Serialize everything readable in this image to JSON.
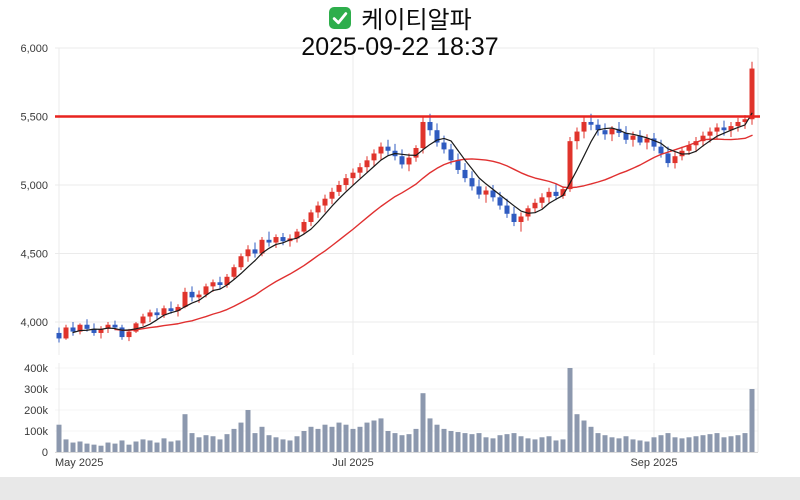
{
  "header": {
    "check_icon": "green-checked-checkbox",
    "title": "케이티알파",
    "timestamp": "2025-09-22 18:37"
  },
  "colors": {
    "up": "#e0342c",
    "down": "#2f5bc0",
    "ma_fast": "#1a1a1a",
    "ma_slow": "#e03030",
    "resistance": "#e8231f",
    "volume": "#8c98ae",
    "grid": "#ebebeb",
    "grid_faint": "#f4f4f4",
    "axis_line": "#d8d8d8",
    "footer_band": "#e8e8e8",
    "check_green": "#2eae4c"
  },
  "chart_data": {
    "type": "candlestick",
    "title": "케이티알파",
    "timestamp": "2025-09-22 18:37",
    "candle_fields": [
      "open",
      "high",
      "low",
      "close",
      "volume_k"
    ],
    "y_axis": {
      "ticks": [
        6000,
        5500,
        5000,
        4500,
        4000
      ],
      "labels": [
        "6,000",
        "5,500",
        "5,000",
        "4,500",
        "4,000"
      ],
      "range": [
        3760,
        6050
      ]
    },
    "volume_axis": {
      "ticks": [
        400,
        300,
        200,
        100,
        0
      ],
      "labels": [
        "400k",
        "300k",
        "200k",
        "100k",
        "0"
      ],
      "unit": "thousand-shares",
      "range": [
        0,
        450
      ]
    },
    "x_axis": {
      "labels": [
        {
          "text": "May 2025",
          "index": 0
        },
        {
          "text": "Jul 2025",
          "index": 42
        },
        {
          "text": "Sep 2025",
          "index": 85
        }
      ]
    },
    "resistance_level": 5500,
    "moving_averages": {
      "fast_period": 5,
      "slow_period": 20
    },
    "candles": [
      [
        3920,
        3960,
        3850,
        3880,
        130
      ],
      [
        3880,
        3980,
        3870,
        3960,
        60
      ],
      [
        3960,
        4000,
        3900,
        3930,
        45
      ],
      [
        3930,
        3990,
        3910,
        3980,
        50
      ],
      [
        3980,
        4020,
        3930,
        3950,
        40
      ],
      [
        3950,
        3990,
        3900,
        3920,
        35
      ],
      [
        3920,
        3970,
        3880,
        3950,
        30
      ],
      [
        3950,
        4000,
        3920,
        3980,
        45
      ],
      [
        3980,
        4010,
        3940,
        3960,
        40
      ],
      [
        3960,
        3980,
        3870,
        3890,
        55
      ],
      [
        3890,
        3950,
        3860,
        3930,
        35
      ],
      [
        3930,
        4000,
        3920,
        3990,
        50
      ],
      [
        3990,
        4060,
        3970,
        4040,
        60
      ],
      [
        4040,
        4090,
        4000,
        4070,
        55
      ],
      [
        4070,
        4100,
        4020,
        4050,
        45
      ],
      [
        4050,
        4120,
        4030,
        4100,
        65
      ],
      [
        4100,
        4150,
        4060,
        4080,
        50
      ],
      [
        4080,
        4130,
        4040,
        4110,
        55
      ],
      [
        4110,
        4250,
        4100,
        4220,
        180
      ],
      [
        4220,
        4260,
        4150,
        4180,
        90
      ],
      [
        4180,
        4230,
        4140,
        4200,
        70
      ],
      [
        4200,
        4280,
        4180,
        4260,
        80
      ],
      [
        4260,
        4310,
        4220,
        4290,
        75
      ],
      [
        4290,
        4330,
        4240,
        4270,
        60
      ],
      [
        4270,
        4350,
        4250,
        4330,
        85
      ],
      [
        4330,
        4420,
        4310,
        4400,
        110
      ],
      [
        4400,
        4500,
        4380,
        4480,
        140
      ],
      [
        4480,
        4560,
        4440,
        4530,
        200
      ],
      [
        4530,
        4580,
        4470,
        4500,
        90
      ],
      [
        4500,
        4620,
        4480,
        4600,
        120
      ],
      [
        4600,
        4660,
        4550,
        4580,
        80
      ],
      [
        4580,
        4640,
        4540,
        4620,
        70
      ],
      [
        4620,
        4650,
        4560,
        4590,
        60
      ],
      [
        4590,
        4640,
        4550,
        4610,
        55
      ],
      [
        4610,
        4680,
        4580,
        4660,
        75
      ],
      [
        4660,
        4750,
        4640,
        4730,
        100
      ],
      [
        4730,
        4820,
        4700,
        4800,
        120
      ],
      [
        4800,
        4880,
        4760,
        4850,
        110
      ],
      [
        4850,
        4930,
        4800,
        4900,
        130
      ],
      [
        4900,
        4980,
        4860,
        4950,
        120
      ],
      [
        4950,
        5030,
        4920,
        5000,
        140
      ],
      [
        5000,
        5080,
        4960,
        5050,
        130
      ],
      [
        5050,
        5120,
        5000,
        5090,
        110
      ],
      [
        5090,
        5160,
        5050,
        5130,
        120
      ],
      [
        5130,
        5210,
        5090,
        5180,
        140
      ],
      [
        5180,
        5260,
        5140,
        5230,
        150
      ],
      [
        5230,
        5310,
        5180,
        5280,
        160
      ],
      [
        5280,
        5330,
        5220,
        5250,
        100
      ],
      [
        5250,
        5300,
        5180,
        5210,
        90
      ],
      [
        5210,
        5260,
        5120,
        5150,
        80
      ],
      [
        5150,
        5230,
        5100,
        5200,
        85
      ],
      [
        5200,
        5290,
        5170,
        5270,
        110
      ],
      [
        5270,
        5500,
        5230,
        5460,
        280
      ],
      [
        5460,
        5520,
        5360,
        5400,
        160
      ],
      [
        5400,
        5450,
        5280,
        5310,
        130
      ],
      [
        5310,
        5360,
        5230,
        5260,
        110
      ],
      [
        5260,
        5300,
        5150,
        5180,
        100
      ],
      [
        5180,
        5230,
        5080,
        5110,
        95
      ],
      [
        5110,
        5160,
        5020,
        5050,
        90
      ],
      [
        5050,
        5100,
        4960,
        4990,
        85
      ],
      [
        4990,
        5040,
        4900,
        4930,
        90
      ],
      [
        4930,
        4990,
        4870,
        4960,
        70
      ],
      [
        4960,
        5000,
        4880,
        4910,
        65
      ],
      [
        4910,
        4950,
        4820,
        4850,
        80
      ],
      [
        4850,
        4900,
        4760,
        4790,
        85
      ],
      [
        4790,
        4840,
        4700,
        4730,
        90
      ],
      [
        4730,
        4800,
        4660,
        4770,
        75
      ],
      [
        4770,
        4850,
        4740,
        4830,
        65
      ],
      [
        4830,
        4900,
        4800,
        4870,
        60
      ],
      [
        4870,
        4940,
        4830,
        4910,
        70
      ],
      [
        4910,
        4980,
        4870,
        4950,
        75
      ],
      [
        4950,
        5010,
        4890,
        4920,
        55
      ],
      [
        4920,
        4990,
        4900,
        4970,
        60
      ],
      [
        4970,
        5350,
        4950,
        5320,
        400
      ],
      [
        5320,
        5420,
        5260,
        5390,
        180
      ],
      [
        5390,
        5500,
        5340,
        5460,
        150
      ],
      [
        5460,
        5520,
        5400,
        5440,
        120
      ],
      [
        5440,
        5480,
        5360,
        5400,
        90
      ],
      [
        5400,
        5450,
        5330,
        5370,
        80
      ],
      [
        5370,
        5430,
        5320,
        5410,
        70
      ],
      [
        5410,
        5460,
        5350,
        5380,
        65
      ],
      [
        5380,
        5430,
        5300,
        5330,
        75
      ],
      [
        5330,
        5390,
        5280,
        5360,
        60
      ],
      [
        5360,
        5400,
        5290,
        5310,
        55
      ],
      [
        5310,
        5370,
        5260,
        5340,
        50
      ],
      [
        5340,
        5380,
        5250,
        5280,
        70
      ],
      [
        5280,
        5330,
        5200,
        5230,
        80
      ],
      [
        5230,
        5280,
        5130,
        5160,
        90
      ],
      [
        5160,
        5240,
        5120,
        5210,
        70
      ],
      [
        5210,
        5280,
        5180,
        5250,
        65
      ],
      [
        5250,
        5320,
        5220,
        5290,
        70
      ],
      [
        5290,
        5350,
        5240,
        5320,
        75
      ],
      [
        5320,
        5390,
        5280,
        5360,
        80
      ],
      [
        5360,
        5420,
        5310,
        5390,
        85
      ],
      [
        5390,
        5450,
        5340,
        5420,
        90
      ],
      [
        5420,
        5470,
        5360,
        5400,
        70
      ],
      [
        5400,
        5460,
        5350,
        5430,
        75
      ],
      [
        5430,
        5490,
        5390,
        5460,
        80
      ],
      [
        5460,
        5510,
        5410,
        5480,
        90
      ],
      [
        5480,
        5900,
        5440,
        5850,
        300
      ]
    ]
  }
}
